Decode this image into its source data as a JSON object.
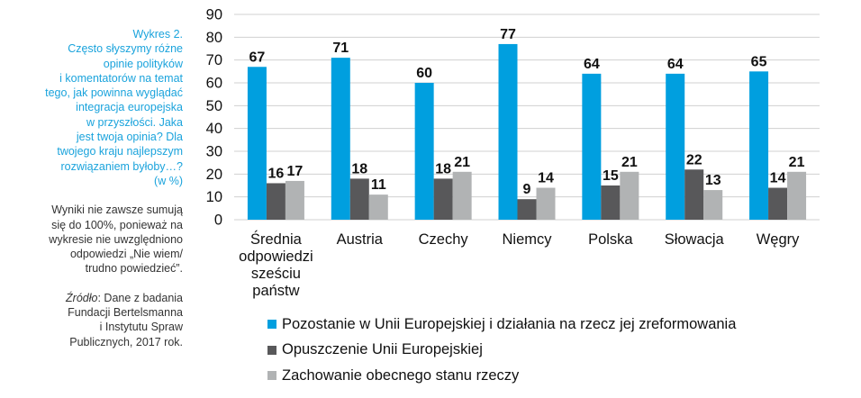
{
  "sidebar": {
    "caption": "Wykres 2.\nCzęsto słyszymy różne\nopinie polityków\ni komentatorów na temat\ntego, jak powinna wyglądać\nintegracja europejska\nw przyszłości. Jaka\njest twoja opinia? Dla\ntwojego kraju najlepszym\nrozwiązaniem byłoby…?\n(w %)",
    "note": "Wyniki nie zawsze sumują\nsię do 100%, ponieważ na\nwykresie nie uwzględniono\nodpowiedzi „Nie wiem/\ntrudno powiedzieć”.",
    "source_label": "Źródło",
    "source_text": ": Dane z badania\nFundacji Bertelsmanna\ni Instytutu Spraw\nPublicznych, 2017 rok."
  },
  "chart_data": {
    "type": "bar",
    "categories": [
      "Średnia\nodpowiedzi\nsześciu\npaństw",
      "Austria",
      "Czechy",
      "Niemcy",
      "Polska",
      "Słowacja",
      "Węgry"
    ],
    "series": [
      {
        "name": "Pozostanie w Unii Europejskiej i działania na rzecz jej zreformowania",
        "color": "#009fdf",
        "values": [
          67,
          71,
          60,
          77,
          64,
          64,
          65
        ]
      },
      {
        "name": "Opuszczenie Unii Europejskiej",
        "color": "#58585a",
        "values": [
          16,
          18,
          18,
          9,
          15,
          22,
          14
        ]
      },
      {
        "name": "Zachowanie obecnego stanu rzeczy",
        "color": "#b1b3b4",
        "values": [
          17,
          11,
          21,
          14,
          21,
          13,
          21
        ]
      }
    ],
    "ylim": [
      0,
      90
    ],
    "yticks": [
      0,
      10,
      20,
      30,
      40,
      50,
      60,
      70,
      80,
      90
    ],
    "grid": true,
    "legend_position": "bottom"
  }
}
